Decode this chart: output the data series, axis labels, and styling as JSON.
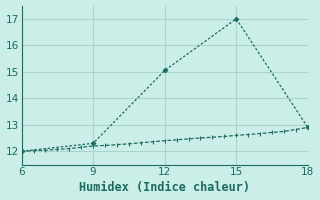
{
  "xlabel": "Humidex (Indice chaleur)",
  "bg_color": "#cceee8",
  "line_color": "#1a6b60",
  "grid_color": "#aad4cc",
  "spine_color": "#1a6b60",
  "x_flat": [
    6,
    6.5,
    7,
    7.5,
    8,
    8.5,
    9,
    9.5,
    10,
    10.5,
    11,
    11.5,
    12,
    12.5,
    13,
    13.5,
    14,
    14.5,
    15,
    15.5,
    16,
    16.5,
    17,
    17.5,
    18
  ],
  "y_flat": [
    12.0,
    12.02,
    12.04,
    12.07,
    12.1,
    12.15,
    12.2,
    12.22,
    12.25,
    12.28,
    12.32,
    12.36,
    12.4,
    12.43,
    12.47,
    12.5,
    12.53,
    12.56,
    12.6,
    12.63,
    12.67,
    12.71,
    12.75,
    12.82,
    12.9
  ],
  "x_peak": [
    6,
    9,
    12,
    15,
    18
  ],
  "y_peak": [
    12.0,
    12.3,
    15.05,
    17.0,
    12.9
  ],
  "xlim": [
    6,
    18
  ],
  "ylim": [
    11.5,
    17.5
  ],
  "xticks": [
    6,
    9,
    12,
    15,
    18
  ],
  "yticks": [
    12,
    13,
    14,
    15,
    16,
    17
  ],
  "tick_fontsize": 7.5,
  "xlabel_fontsize": 8.5
}
